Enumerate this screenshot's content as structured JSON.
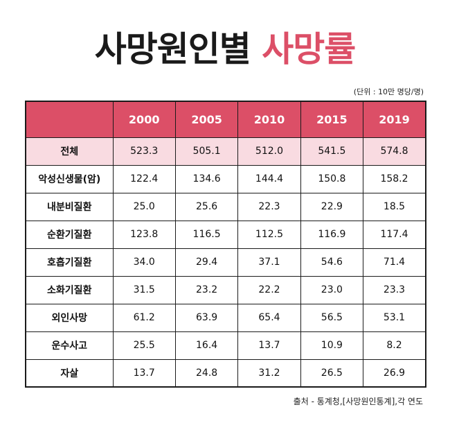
{
  "title": {
    "part1": "사망원인별",
    "part2": "사망률",
    "accent_color": "#dc4f67"
  },
  "unit_note": "(단위 : 10만 명당/명)",
  "table": {
    "header_color": "#dc4f67",
    "total_row_color": "#f9dbe1",
    "corner_label": "",
    "years": [
      "2000",
      "2005",
      "2010",
      "2015",
      "2019"
    ],
    "rows": [
      {
        "label": "전체",
        "values": [
          "523.3",
          "505.1",
          "512.0",
          "541.5",
          "574.8"
        ]
      },
      {
        "label": "악성신생물(암)",
        "values": [
          "122.4",
          "134.6",
          "144.4",
          "150.8",
          "158.2"
        ]
      },
      {
        "label": "내분비질환",
        "values": [
          "25.0",
          "25.6",
          "22.3",
          "22.9",
          "18.5"
        ]
      },
      {
        "label": "순환기질환",
        "values": [
          "123.8",
          "116.5",
          "112.5",
          "116.9",
          "117.4"
        ]
      },
      {
        "label": "호흡기질환",
        "values": [
          "34.0",
          "29.4",
          "37.1",
          "54.6",
          "71.4"
        ]
      },
      {
        "label": "소화기질환",
        "values": [
          "31.5",
          "23.2",
          "22.2",
          "23.0",
          "23.3"
        ]
      },
      {
        "label": "외인사망",
        "values": [
          "61.2",
          "63.9",
          "65.4",
          "56.5",
          "53.1"
        ]
      },
      {
        "label": "운수사고",
        "values": [
          "25.5",
          "16.4",
          "13.7",
          "10.9",
          "8.2"
        ]
      },
      {
        "label": "자살",
        "values": [
          "13.7",
          "24.8",
          "31.2",
          "26.5",
          "26.9"
        ]
      }
    ]
  },
  "source": "출처 - 통계청,[사망원인통계],각 연도"
}
